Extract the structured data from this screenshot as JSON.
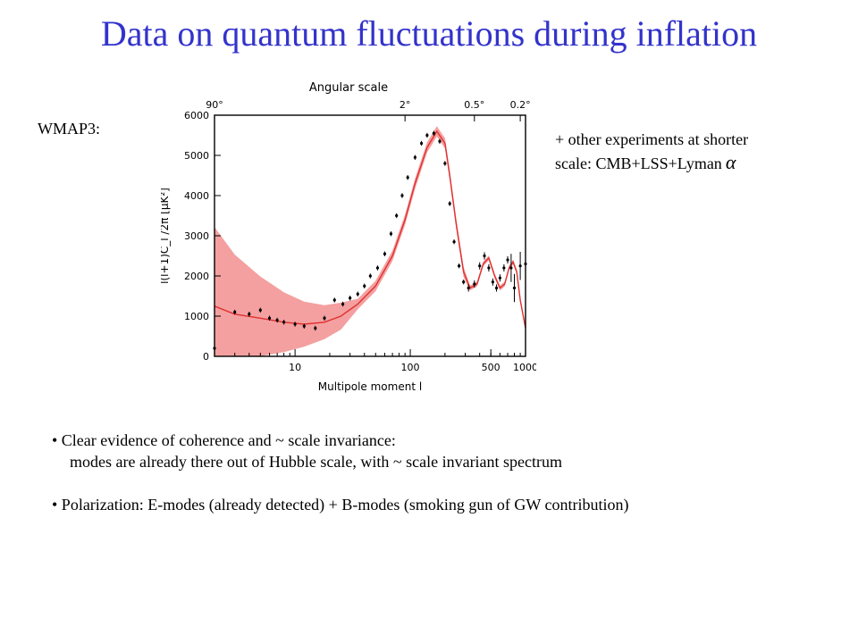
{
  "slide": {
    "title": "Data on quantum fluctuations during inflation",
    "left_label": "WMAP3:",
    "right_note": {
      "line1": "+ other experiments at shorter",
      "line2": "scale: CMB+LSS+Lyman",
      "symbol": "α"
    },
    "bullets": [
      {
        "text": "• Clear evidence of coherence and ~ scale invariance:",
        "sub": "modes are already there out of Hubble scale, with ~ scale invariant spectrum"
      },
      {
        "text": "• Polarization: E-modes (already detected) + B-modes (smoking gun of GW contribution)"
      }
    ]
  },
  "colors": {
    "title": "#3333cc",
    "band": "#f4a0a0",
    "theory": "#e03030",
    "data": "#000000"
  },
  "chart_data": {
    "type": "scatter",
    "xscale": "log",
    "xlim": [
      2,
      1000
    ],
    "ylim": [
      0,
      6000
    ],
    "xlabel": "Multipole moment l",
    "ylabel": "l(l+1)C_l /2π [μK²]",
    "top_axis_label": "Angular scale",
    "top_ticks": [
      {
        "label": "90°",
        "l": 2
      },
      {
        "label": "2°",
        "l": 90
      },
      {
        "label": "0.5°",
        "l": 360
      },
      {
        "label": "0.2°",
        "l": 900
      }
    ],
    "x_ticks": [
      10,
      100,
      500,
      1000
    ],
    "y_ticks": [
      0,
      1000,
      2000,
      3000,
      4000,
      5000,
      6000
    ],
    "grid": false,
    "series": [
      {
        "x": [
          2,
          3,
          4,
          5,
          6,
          7,
          8,
          10,
          12,
          15,
          18,
          22,
          26,
          30,
          35,
          40,
          45,
          52,
          60,
          68,
          76,
          85,
          95,
          110,
          125,
          140,
          160,
          180,
          200,
          220,
          240,
          265,
          290,
          320,
          360,
          400,
          440,
          480,
          520,
          560,
          600,
          650,
          700,
          750,
          800,
          900,
          1000
        ],
        "y": [
          200,
          1100,
          1050,
          1150,
          950,
          900,
          850,
          800,
          750,
          700,
          950,
          1400,
          1300,
          1450,
          1550,
          1750,
          2000,
          2200,
          2550,
          3050,
          3500,
          4000,
          4450,
          4950,
          5300,
          5500,
          5550,
          5350,
          4800,
          3800,
          2850,
          2250,
          1850,
          1700,
          1800,
          2250,
          2500,
          2200,
          1850,
          1700,
          1950,
          2200,
          2400,
          2200,
          1700,
          2250,
          2300
        ]
      }
    ]
  }
}
